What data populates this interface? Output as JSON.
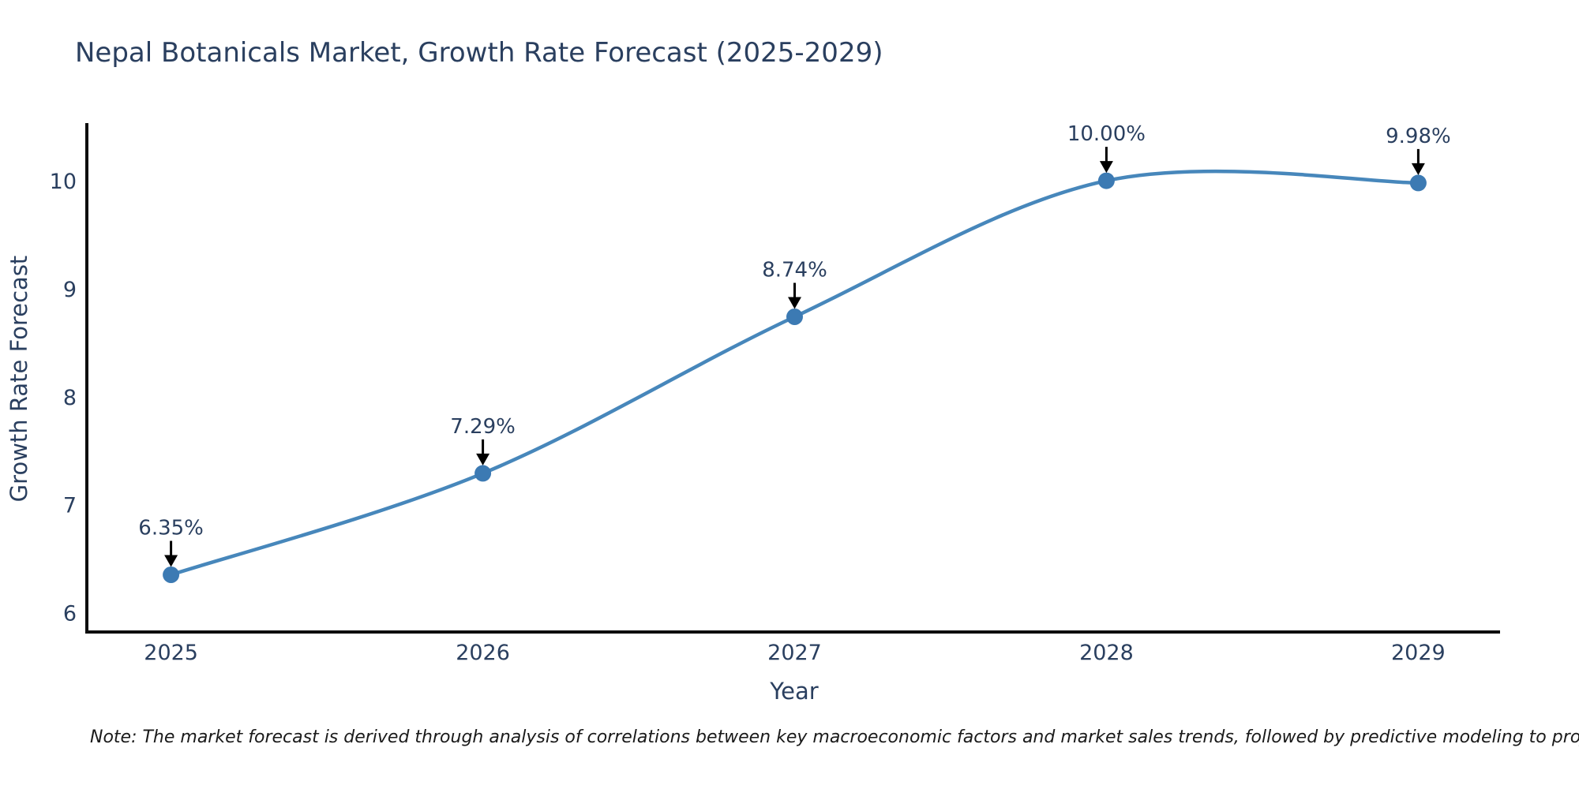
{
  "page": {
    "background": "#ffffff"
  },
  "note": {
    "text": "Note: The market forecast is derived through analysis of correlations between key macroeconomic factors and market sales trends, followed by predictive modeling to project future sales"
  },
  "colors": {
    "title_text": "#2a3f5f",
    "axis_text": "#2a3f5f",
    "tick_text": "#2a3f5f",
    "annotation_text": "#2a3f5f",
    "note_text": "#1a1a1a",
    "axis_line": "#0d0d0d",
    "series_line": "#4787bb",
    "series_marker": "#3c7ab3",
    "arrow": "#000000"
  },
  "chart_data": {
    "type": "line",
    "title": "Nepal Botanicals Market, Growth Rate Forecast (2025-2029)",
    "xlabel": "Year",
    "ylabel": "Growth Rate Forecast",
    "categories": [
      2025,
      2026,
      2027,
      2028,
      2029
    ],
    "series": [
      {
        "name": "Growth Rate Forecast",
        "values": [
          6.35,
          7.29,
          8.74,
          10.0,
          9.98
        ],
        "point_labels": [
          "6.35%",
          "7.29%",
          "8.74%",
          "10.00%",
          "9.98%"
        ]
      }
    ],
    "line_shape": "spline",
    "markers": true,
    "annotations": "value labels with downward black arrows above each point",
    "xlim": [
      2024.73,
      2029.27
    ],
    "ylim": [
      5.82,
      10.52
    ],
    "xticks": [
      2025,
      2026,
      2027,
      2028,
      2029
    ],
    "yticks": [
      6,
      7,
      8,
      9,
      10
    ],
    "grid": false,
    "legend": "none"
  }
}
